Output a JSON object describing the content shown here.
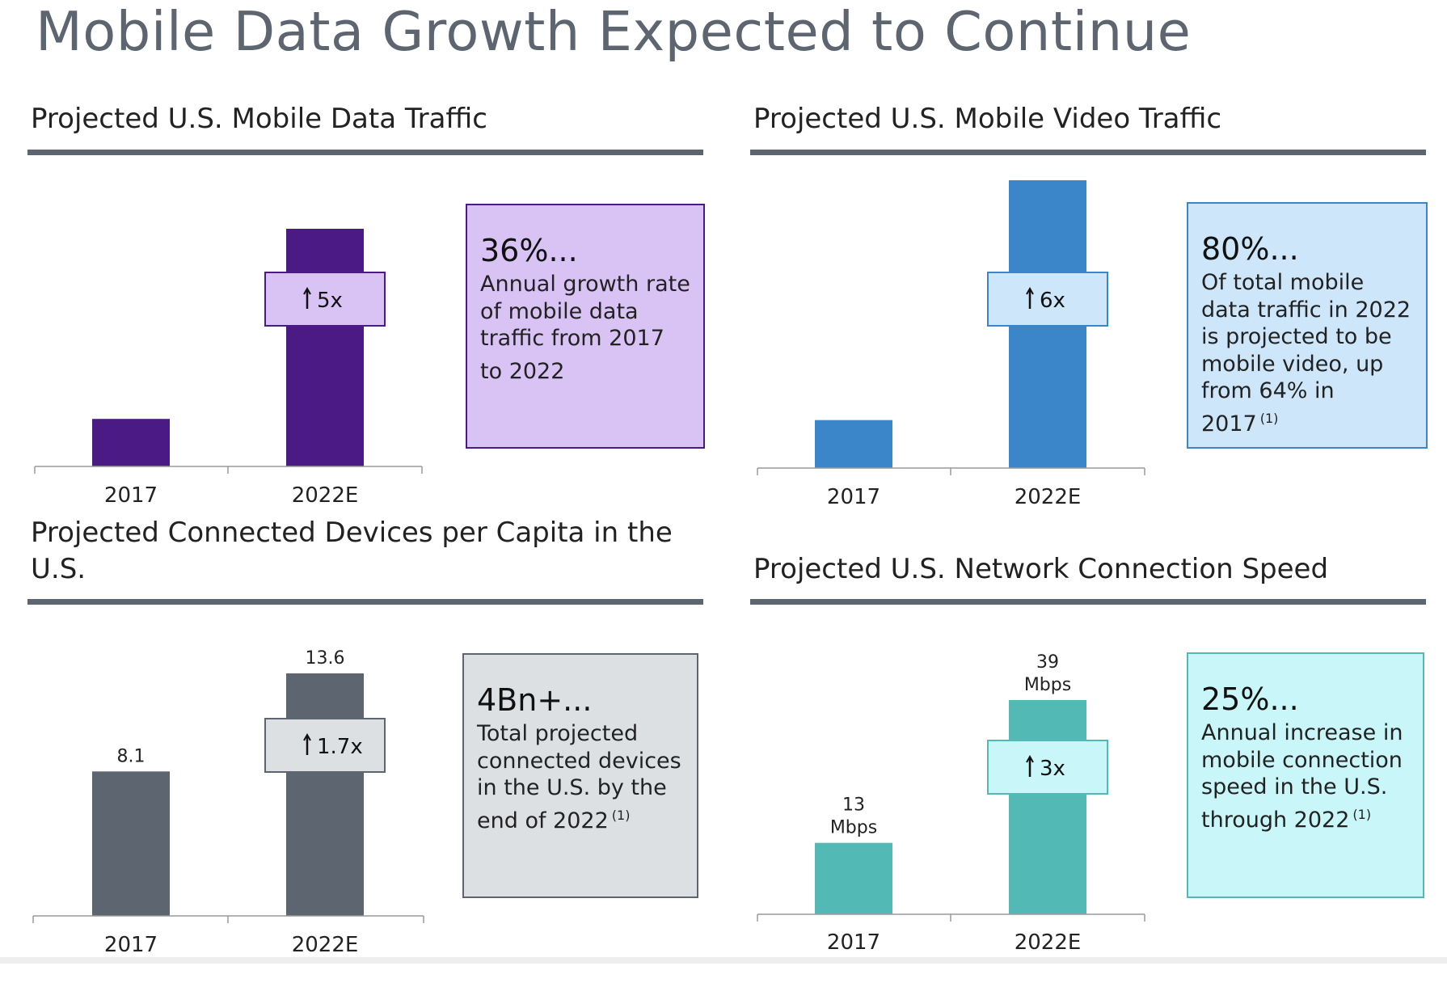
{
  "title": "Mobile Data Growth Expected to Continue",
  "colors": {
    "rule": "#5d6670",
    "axis": "#9a9a9a"
  },
  "panels": [
    {
      "title": "Projected U.S. Mobile Data Traffic",
      "bar_color": "#4b1a85",
      "multiplier": {
        "label": "5x",
        "fill": "#d9c3f5",
        "border": "#4b1a85"
      },
      "callout": {
        "headline": "36%...",
        "text": "Annual growth rate of mobile data traffic from 2017 to 2022",
        "footnote": "",
        "fill": "#d9c3f5",
        "border": "#4b1a85"
      }
    },
    {
      "title": "Projected U.S. Mobile Video Traffic",
      "bar_color": "#3a86c8",
      "multiplier": {
        "label": "6x",
        "fill": "#cde6fa",
        "border": "#3a86c8"
      },
      "callout": {
        "headline": "80%...",
        "text": "Of total mobile data traffic in 2022 is projected to be mobile video, up from 64% in 2017",
        "footnote": "(1)",
        "fill": "#cde6fa",
        "border": "#3a86c8"
      }
    },
    {
      "title": "Projected Connected Devices per Capita in the U.S.",
      "bar_color": "#5d6670",
      "multiplier": {
        "label": "1.7x",
        "fill": "#dde0e3",
        "border": "#5d6670"
      },
      "callout": {
        "headline": "4Bn+...",
        "text": "Total projected connected devices in the U.S. by the end of 2022",
        "footnote": "(1)",
        "fill": "#dde0e3",
        "border": "#5d6670"
      }
    },
    {
      "title": "Projected U.S. Network Connection Speed",
      "bar_color": "#52b9b4",
      "multiplier": {
        "label": "3x",
        "fill": "#c9f6f8",
        "border": "#52b9b4"
      },
      "callout": {
        "headline": "25%...",
        "text": "Annual increase in mobile connection speed in the U.S. through 2022",
        "footnote": "(1)",
        "fill": "#c9f6f8",
        "border": "#52b9b4"
      }
    }
  ],
  "chart_data": [
    {
      "type": "bar",
      "title": "Projected U.S. Mobile Data Traffic",
      "categories": [
        "2017",
        "2022E"
      ],
      "values": [
        1,
        5
      ],
      "data_labels": [
        "",
        ""
      ],
      "annotation": "5x"
    },
    {
      "type": "bar",
      "title": "Projected U.S. Mobile Video Traffic",
      "categories": [
        "2017",
        "2022E"
      ],
      "values": [
        1,
        6
      ],
      "data_labels": [
        "",
        ""
      ],
      "annotation": "6x"
    },
    {
      "type": "bar",
      "title": "Projected Connected Devices per Capita in the U.S.",
      "categories": [
        "2017",
        "2022E"
      ],
      "values": [
        8.1,
        13.6
      ],
      "data_labels": [
        [
          "8.1"
        ],
        [
          "13.6"
        ]
      ],
      "annotation": "1.7x"
    },
    {
      "type": "bar",
      "title": "Projected U.S. Network Connection Speed",
      "categories": [
        "2017",
        "2022E"
      ],
      "values": [
        13,
        39
      ],
      "data_labels": [
        [
          "13",
          "Mbps"
        ],
        [
          "39",
          "Mbps"
        ]
      ],
      "annotation": "3x"
    }
  ]
}
